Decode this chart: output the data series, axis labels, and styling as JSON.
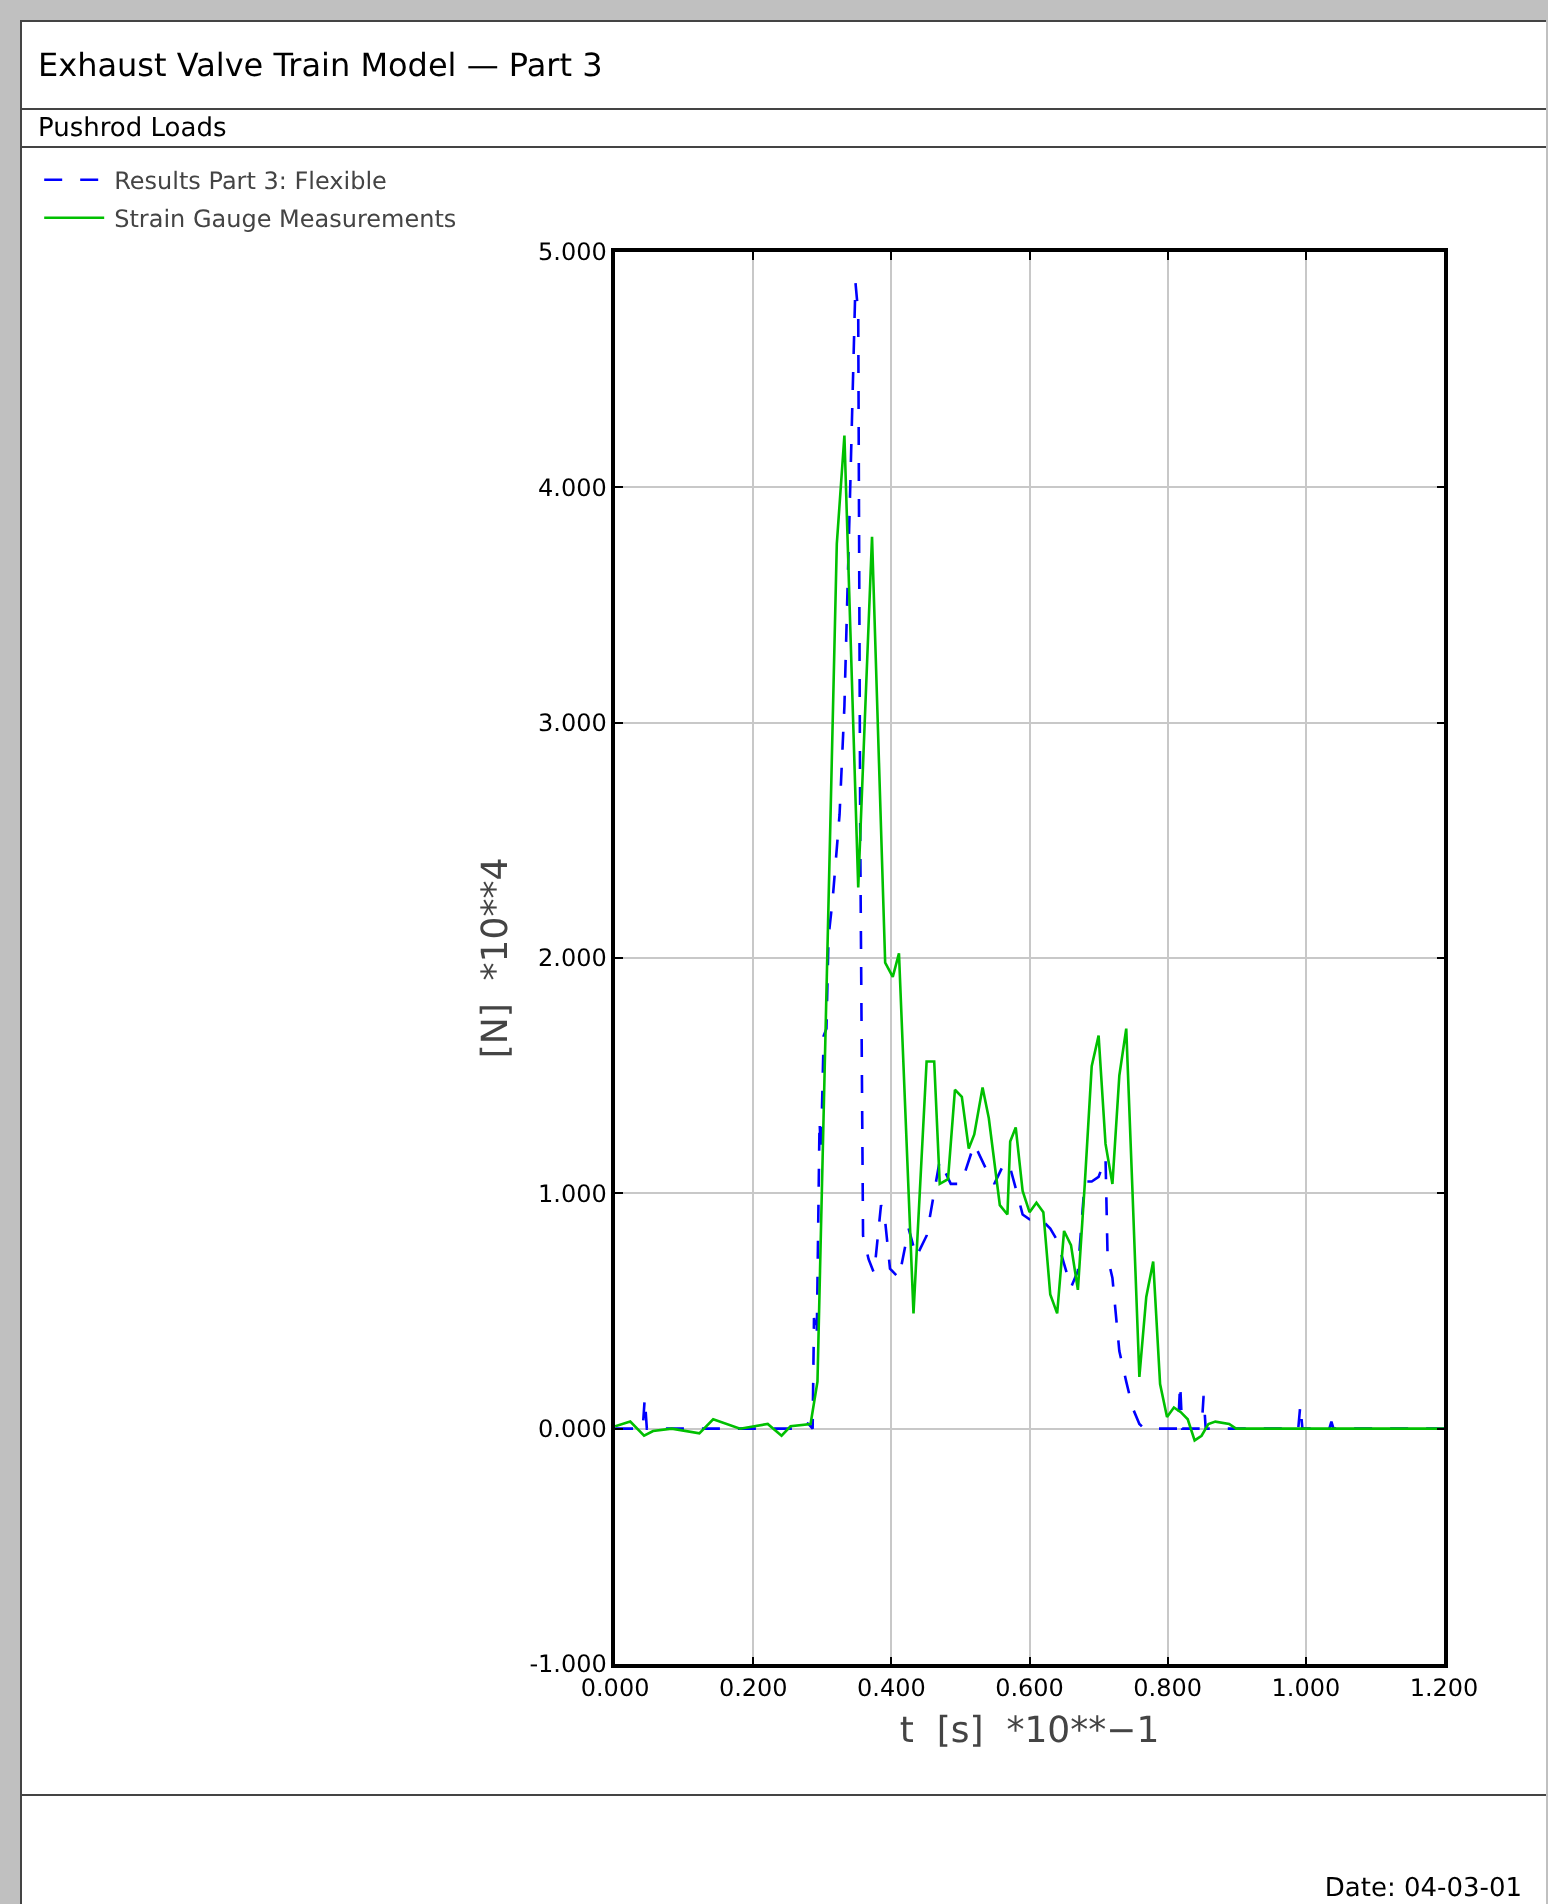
{
  "chart_data": {
    "type": "line",
    "title": "Exhaust Valve Train Model — Part 3",
    "subtitle": "Pushrod Loads",
    "xlabel": "t  [s]  *10**−1",
    "ylabel": "[N]  *10**4",
    "annotations": [
      "Date:  04-03-01"
    ],
    "xlim": [
      0,
      1.2
    ],
    "ylim": [
      -1,
      5
    ],
    "xticks": [
      {
        "value": 0,
        "label": "0.000"
      },
      {
        "value": 0.2,
        "label": "0.200"
      },
      {
        "value": 0.4,
        "label": "0.400"
      },
      {
        "value": 0.6,
        "label": "0.600"
      },
      {
        "value": 0.8,
        "label": "0.800"
      },
      {
        "value": 1.0,
        "label": "1.000"
      },
      {
        "value": 1.2,
        "label": "1.200"
      }
    ],
    "yticks": [
      {
        "value": -1,
        "label": "-1.000"
      },
      {
        "value": 0,
        "label": "0.000"
      },
      {
        "value": 1,
        "label": "1.000"
      },
      {
        "value": 2,
        "label": "2.000"
      },
      {
        "value": 3,
        "label": "3.000"
      },
      {
        "value": 4,
        "label": "4.000"
      },
      {
        "value": 5,
        "label": "5.000"
      }
    ],
    "grid": true,
    "legend": "top left",
    "marker": "none",
    "series": [
      {
        "name": "Results Part 3: Flexible",
        "color": "#0000ff",
        "line_style": "dashed",
        "x": [
          0,
          0.04,
          0.043,
          0.046,
          0.1,
          0.26,
          0.27,
          0.28,
          0.286,
          0.288,
          0.292,
          0.296,
          0.298,
          0.302,
          0.306,
          0.309,
          0.315,
          0.325,
          0.332,
          0.34,
          0.348,
          0.352,
          0.355,
          0.359,
          0.367,
          0.375,
          0.385,
          0.39,
          0.398,
          0.411,
          0.425,
          0.436,
          0.451,
          0.47,
          0.486,
          0.501,
          0.52,
          0.536,
          0.549,
          0.562,
          0.57,
          0.582,
          0.59,
          0.6,
          0.61,
          0.62,
          0.63,
          0.64,
          0.65,
          0.66,
          0.67,
          0.68,
          0.69,
          0.7,
          0.71,
          0.713,
          0.72,
          0.73,
          0.74,
          0.749,
          0.759,
          0.766,
          0.815,
          0.818,
          0.821,
          0.849,
          0.852,
          0.855,
          0.989,
          0.992,
          0.995,
          1.034,
          1.037,
          1.04,
          1.2
        ],
        "values": [
          0,
          0,
          0.13,
          0,
          0,
          0,
          0.03,
          0.02,
          0,
          0.47,
          0.39,
          1.31,
          1.17,
          1.67,
          1.7,
          2.09,
          2.25,
          2.61,
          3.07,
          3.95,
          4.87,
          4.74,
          2.48,
          0.82,
          0.72,
          0.66,
          0.95,
          0.91,
          0.68,
          0.64,
          0.85,
          0.73,
          0.82,
          1.14,
          1.04,
          1.04,
          1.21,
          1.11,
          1.04,
          1.12,
          1.13,
          1,
          0.91,
          0.89,
          0.9,
          0.88,
          0.85,
          0.8,
          0.7,
          0.6,
          0.67,
          1.05,
          1.05,
          1.07,
          1.15,
          0.73,
          0.64,
          0.33,
          0.2,
          0.09,
          0.02,
          0,
          0,
          0.19,
          0,
          0,
          0.14,
          0,
          0,
          0.1,
          0,
          0,
          0.03,
          0,
          0
        ]
      },
      {
        "name": "Strain Gauge Measurements",
        "color": "#00c000",
        "line_style": "solid",
        "x": [
          0,
          0.022,
          0.042,
          0.055,
          0.082,
          0.122,
          0.142,
          0.181,
          0.221,
          0.241,
          0.254,
          0.283,
          0.293,
          0.321,
          0.332,
          0.352,
          0.372,
          0.391,
          0.402,
          0.411,
          0.432,
          0.451,
          0.462,
          0.47,
          0.482,
          0.492,
          0.502,
          0.512,
          0.52,
          0.532,
          0.541,
          0.557,
          0.568,
          0.572,
          0.58,
          0.59,
          0.6,
          0.61,
          0.62,
          0.63,
          0.64,
          0.65,
          0.66,
          0.67,
          0.68,
          0.69,
          0.7,
          0.71,
          0.72,
          0.73,
          0.74,
          0.749,
          0.759,
          0.769,
          0.779,
          0.789,
          0.799,
          0.809,
          0.819,
          0.829,
          0.839,
          0.849,
          0.859,
          0.869,
          0.889,
          0.899,
          1.2
        ],
        "values": [
          0.01,
          0.03,
          -0.03,
          -0.01,
          0,
          -0.02,
          0.04,
          0,
          0.02,
          -0.03,
          0.01,
          0.02,
          0.2,
          3.76,
          4.22,
          2.3,
          3.79,
          1.98,
          1.92,
          2.02,
          0.49,
          1.56,
          1.56,
          1.04,
          1.06,
          1.44,
          1.41,
          1.19,
          1.25,
          1.45,
          1.32,
          0.95,
          0.91,
          1.22,
          1.28,
          1.01,
          0.92,
          0.96,
          0.92,
          0.57,
          0.49,
          0.84,
          0.78,
          0.59,
          1.04,
          1.54,
          1.67,
          1.21,
          1.04,
          1.5,
          1.7,
          1.01,
          0.22,
          0.56,
          0.71,
          0.19,
          0.05,
          0.09,
          0.07,
          0.04,
          -0.05,
          -0.03,
          0.02,
          0.03,
          0.02,
          0,
          0
        ]
      }
    ]
  }
}
